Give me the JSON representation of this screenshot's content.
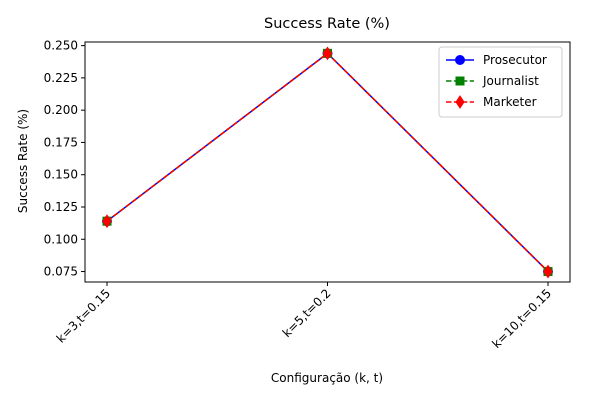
{
  "chart_data": {
    "type": "line",
    "title": "Success Rate (%)",
    "xlabel": "Configuração (k, t)",
    "ylabel": "Success Rate (%)",
    "categories": [
      "k=3,t=0.15",
      "k=5,t=0.2",
      "k=10,t=0.15"
    ],
    "yticks": [
      "0.075",
      "0.100",
      "0.125",
      "0.150",
      "0.175",
      "0.200",
      "0.225",
      "0.250"
    ],
    "ylim": [
      0.0669,
      0.2528
    ],
    "grid": false,
    "legend_position": "top-right",
    "series": [
      {
        "name": "Prosecutor",
        "values": [
          0.114,
          0.244,
          0.075
        ],
        "color": "#0000ff",
        "linestyle": "solid",
        "marker": "circle"
      },
      {
        "name": "Journalist",
        "values": [
          0.114,
          0.244,
          0.075
        ],
        "color": "#008000",
        "linestyle": "dashed",
        "marker": "square"
      },
      {
        "name": "Marketer",
        "values": [
          0.114,
          0.244,
          0.075
        ],
        "color": "#ff0000",
        "linestyle": "dashed",
        "marker": "diamond"
      }
    ]
  }
}
